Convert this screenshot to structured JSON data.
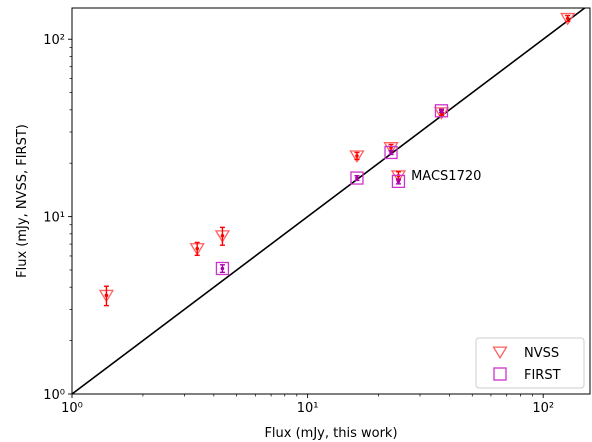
{
  "chart_data": {
    "type": "scatter",
    "xscale": "log",
    "yscale": "log",
    "xlabel": "Flux (mJy, this work)",
    "ylabel": "Flux (mJy, NVSS, FIRST)",
    "xlim": [
      1,
      158
    ],
    "ylim": [
      1,
      150
    ],
    "x_ticks": [
      {
        "value": 1,
        "label": "10⁰"
      },
      {
        "value": 10,
        "label": "10¹"
      },
      {
        "value": 100,
        "label": "10²"
      }
    ],
    "y_ticks": [
      {
        "value": 1,
        "label": "10⁰"
      },
      {
        "value": 10,
        "label": "10¹"
      },
      {
        "value": 100,
        "label": "10²"
      }
    ],
    "grid": false,
    "legend_position": "bottom-right",
    "reference_line": {
      "label": "",
      "slope": 1,
      "color": "#000000"
    },
    "series": [
      {
        "name": "NVSS",
        "marker": "triangle-down",
        "color": "#ff6060",
        "errbar_color": "#ff0000",
        "points": [
          {
            "x": 1.4,
            "y": 3.6,
            "y_err": [
              0.45,
              0.45
            ]
          },
          {
            "x": 3.4,
            "y": 6.6,
            "y_err": [
              0.55,
              0.55
            ]
          },
          {
            "x": 4.35,
            "y": 7.8,
            "y_err": [
              0.9,
              0.9
            ]
          },
          {
            "x": 16.2,
            "y": 22.0,
            "y_err": [
              1.0,
              1.0
            ]
          },
          {
            "x": 22.6,
            "y": 24.5,
            "y_err": [
              1.0,
              1.0
            ]
          },
          {
            "x": 24.3,
            "y": 17.0,
            "y_err": [
              0.9,
              0.9
            ]
          },
          {
            "x": 37.0,
            "y": 38.5,
            "y_err": [
              1.2,
              1.2
            ]
          },
          {
            "x": 127.0,
            "y": 131.0,
            "y_err": [
              5.0,
              5.0
            ]
          }
        ]
      },
      {
        "name": "FIRST",
        "marker": "square",
        "color": "#cc33cc",
        "errbar_color": "#aa00aa",
        "points": [
          {
            "x": 4.35,
            "y": 5.1,
            "y_err": [
              0.25,
              0.25
            ]
          },
          {
            "x": 16.2,
            "y": 16.5,
            "y_err": [
              0.5,
              0.5
            ]
          },
          {
            "x": 22.6,
            "y": 23.0,
            "y_err": [
              0.6,
              0.6
            ]
          },
          {
            "x": 24.3,
            "y": 15.8,
            "y_err": [
              0.5,
              0.5
            ]
          },
          {
            "x": 37.0,
            "y": 39.5,
            "y_err": [
              0.8,
              0.8
            ]
          }
        ]
      }
    ],
    "annotations": [
      {
        "text": "MACS1720",
        "x": 27.5,
        "y": 17.0
      }
    ]
  }
}
